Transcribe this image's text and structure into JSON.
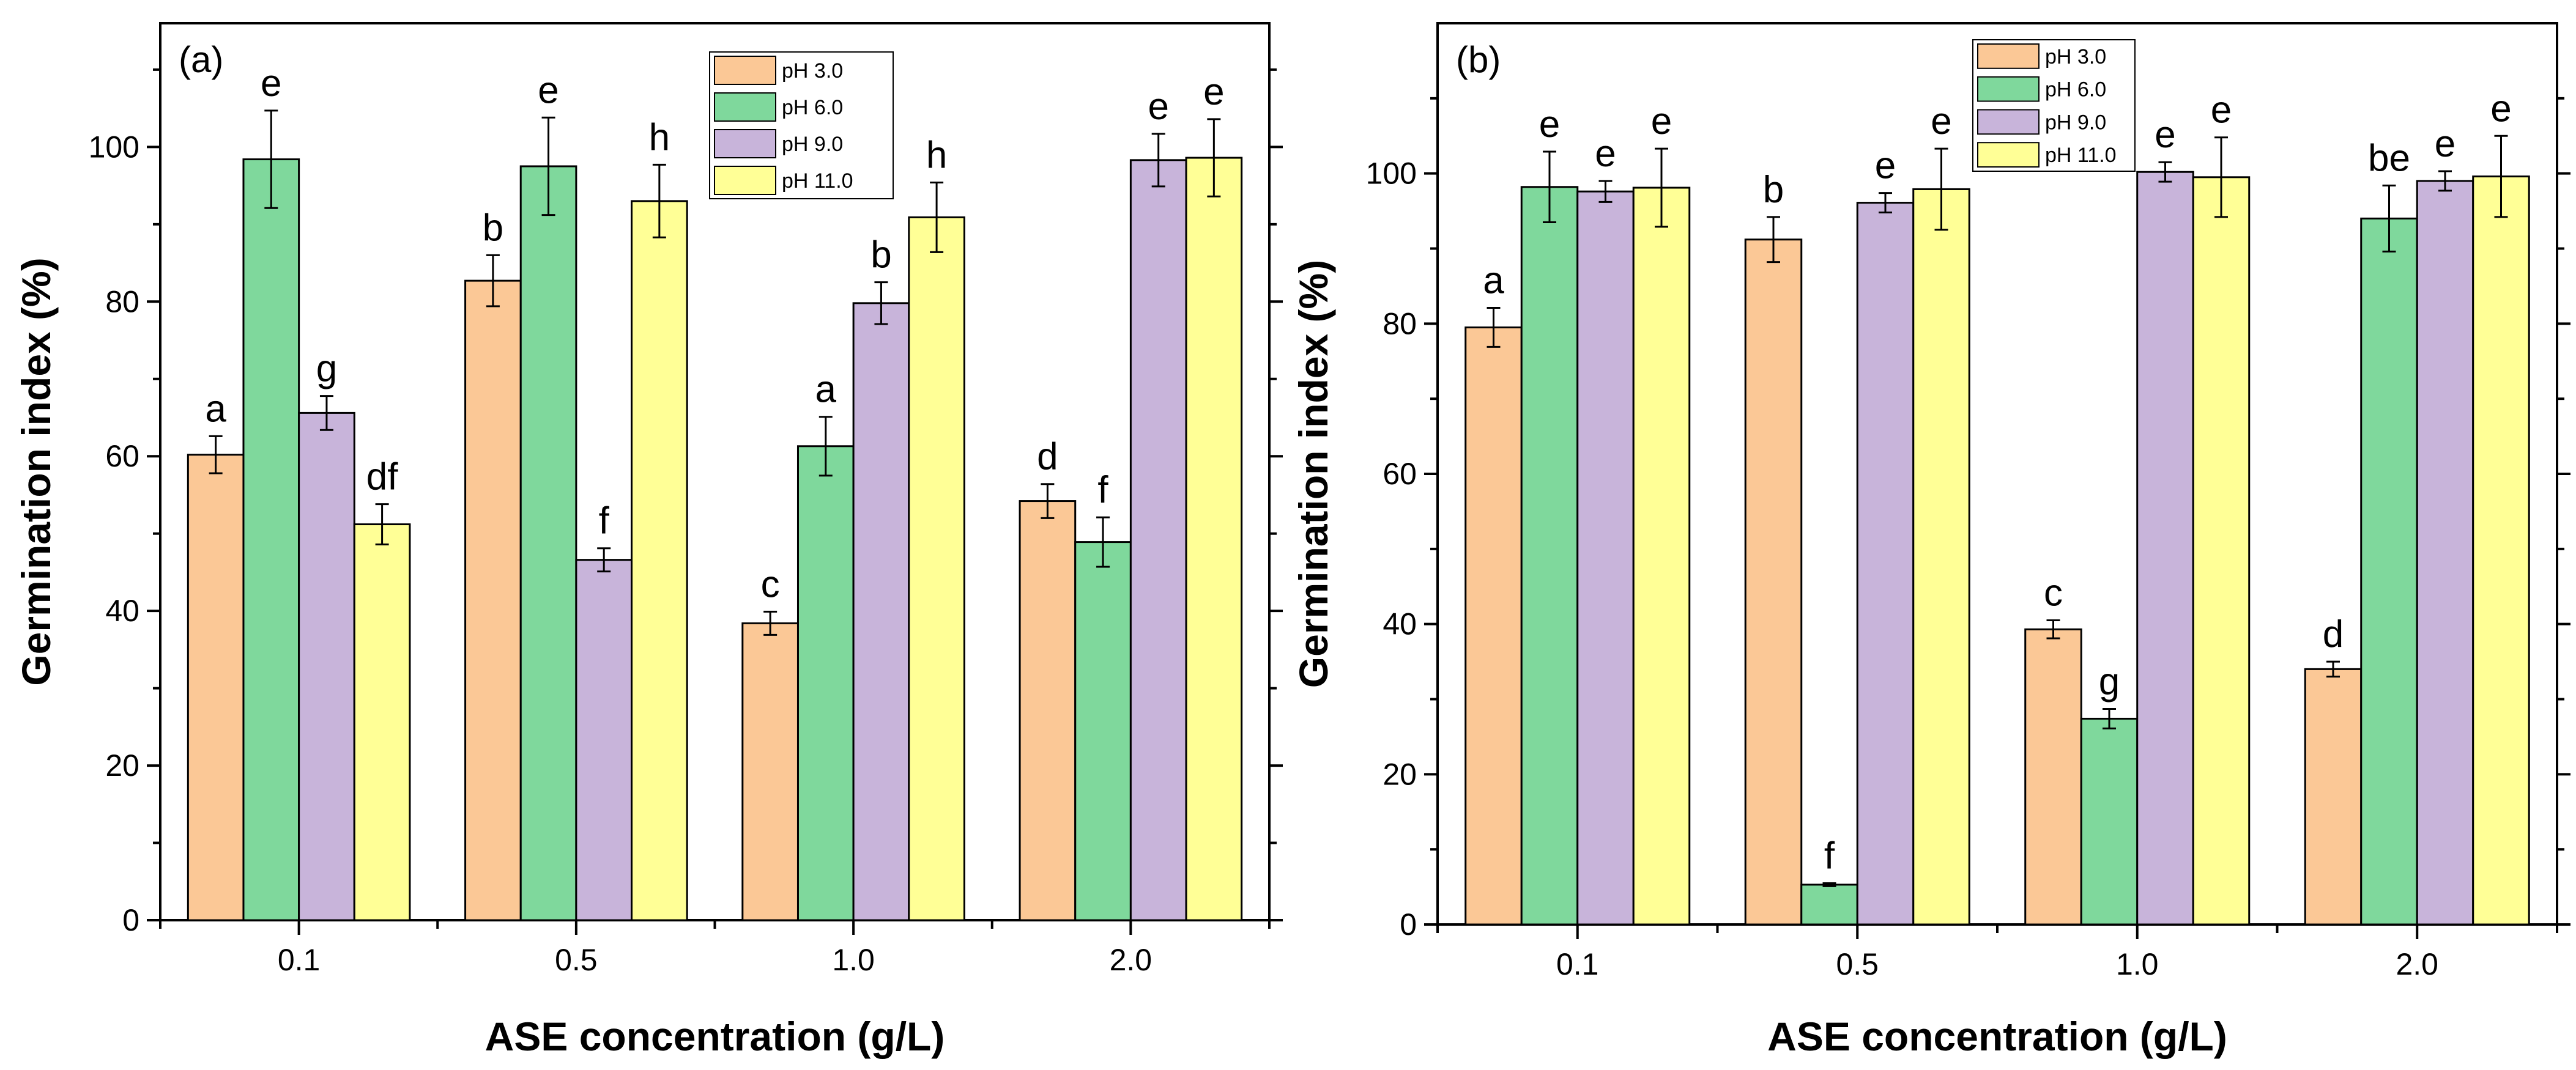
{
  "chart_data": [
    {
      "type": "bar",
      "panel_label": "(a)",
      "xlabel": "ASE concentration (g/L)",
      "ylabel": "Germination index (%)",
      "ylim": [
        0,
        116
      ],
      "yticks": [
        0,
        20,
        40,
        60,
        80,
        100
      ],
      "categories": [
        "0.1",
        "0.5",
        "1.0",
        "2.0"
      ],
      "legend_position": "top-center",
      "series": [
        {
          "name": "pH 3.0",
          "color": "#fbc896",
          "values": [
            60.2,
            82.7,
            38.4,
            54.2
          ],
          "errors": [
            2.4,
            3.3,
            1.5,
            2.2
          ],
          "letters": [
            "a",
            "b",
            "c",
            "d"
          ]
        },
        {
          "name": "pH 6.0",
          "color": "#7fd89c",
          "values": [
            98.4,
            97.5,
            61.3,
            48.9
          ],
          "errors": [
            6.3,
            6.3,
            3.8,
            3.2
          ],
          "letters": [
            "e",
            "e",
            "a",
            "f"
          ]
        },
        {
          "name": "pH 9.0",
          "color": "#c8b4da",
          "values": [
            65.6,
            46.6,
            79.8,
            98.3
          ],
          "errors": [
            2.2,
            1.5,
            2.7,
            3.4
          ],
          "letters": [
            "g",
            "f",
            "b",
            "e"
          ]
        },
        {
          "name": "pH 11.0",
          "color": "#ffff96",
          "values": [
            51.2,
            93.0,
            90.9,
            98.6
          ],
          "errors": [
            2.6,
            4.7,
            4.5,
            5.0
          ],
          "letters": [
            "df",
            "h",
            "h",
            "e"
          ]
        }
      ]
    },
    {
      "type": "bar",
      "panel_label": "(b)",
      "xlabel": "ASE concentration (g/L)",
      "ylabel": "Germination index (%)",
      "ylim": [
        0,
        120
      ],
      "yticks": [
        0,
        20,
        40,
        60,
        80,
        100
      ],
      "categories": [
        "0.1",
        "0.5",
        "1.0",
        "2.0"
      ],
      "legend_position": "top-center",
      "series": [
        {
          "name": "pH 3.0",
          "color": "#fbc896",
          "values": [
            79.5,
            91.2,
            39.3,
            34.0
          ],
          "errors": [
            2.6,
            3.0,
            1.2,
            1.0
          ],
          "letters": [
            "a",
            "b",
            "c",
            "d"
          ]
        },
        {
          "name": "pH 6.0",
          "color": "#7fd89c",
          "values": [
            98.2,
            5.3,
            27.4,
            94.0
          ],
          "errors": [
            4.7,
            0.2,
            1.3,
            4.4
          ],
          "letters": [
            "e",
            "f",
            "g",
            "be"
          ]
        },
        {
          "name": "pH 9.0",
          "color": "#c8b4da",
          "values": [
            97.6,
            96.1,
            100.2,
            99.0
          ],
          "errors": [
            1.4,
            1.3,
            1.3,
            1.3
          ],
          "letters": [
            "e",
            "e",
            "e",
            "e"
          ]
        },
        {
          "name": "pH 11.0",
          "color": "#ffff96",
          "values": [
            98.1,
            97.9,
            99.5,
            99.6
          ],
          "errors": [
            5.2,
            5.4,
            5.3,
            5.4
          ],
          "letters": [
            "e",
            "e",
            "e",
            "e"
          ]
        }
      ]
    }
  ]
}
